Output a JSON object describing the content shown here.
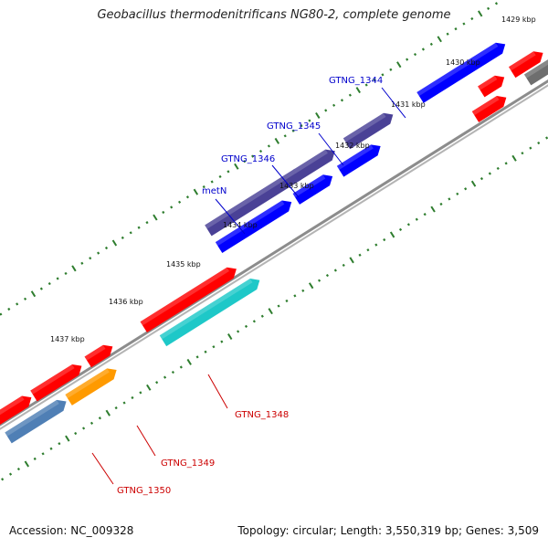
{
  "title": "Geobacillus thermodenitrificans NG80-2, complete genome",
  "footer": {
    "accession": "Accession: NC_009328",
    "topology": "Topology: circular; Length: 3,550,319 bp; Genes: 3,509"
  },
  "ticks": [
    "1429 kbp",
    "1430 kbp",
    "1431 kbp",
    "1432 kbp",
    "1433 kbp",
    "1434 kbp",
    "1435 kbp",
    "1436 kbp",
    "1437 kbp"
  ],
  "genes": [
    {
      "name": "GTNG_1344",
      "color": "blue"
    },
    {
      "name": "GTNG_1345",
      "color": "blue"
    },
    {
      "name": "GTNG_1346",
      "color": "blue"
    },
    {
      "name": "metN",
      "color": "blue"
    },
    {
      "name": "GTNG_1348",
      "color": "red"
    },
    {
      "name": "GTNG_1349",
      "color": "red"
    },
    {
      "name": "GTNG_1350",
      "color": "red"
    }
  ],
  "colors": {
    "forward_gene": "#ff0000",
    "reverse_gene": "#0000ff",
    "dark_gene": "#4a4196",
    "cyan_gene": "#1ec8c8",
    "orange_gene": "#ff9a00",
    "steel_gene": "#4f7fb5",
    "gray_gene": "#6e6e6e",
    "backbone": "#8c8c8c",
    "tick_marks": "#2e7d2e",
    "label_blue": "#0000cc",
    "label_red": "#cc0000"
  }
}
